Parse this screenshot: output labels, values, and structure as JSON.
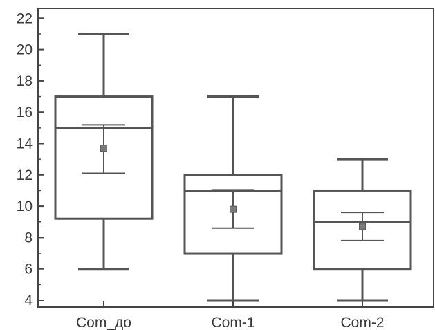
{
  "chart_data": {
    "type": "box",
    "title": "",
    "xlabel": "",
    "ylabel": "",
    "categories": [
      "Сom_до",
      "Сom-1",
      "Сom-2"
    ],
    "ylim": [
      3.2,
      22.8
    ],
    "yticks": [
      4,
      6,
      8,
      10,
      12,
      14,
      16,
      18,
      20,
      22
    ],
    "grid": false,
    "legend": "none",
    "boxes": [
      {
        "category": "Сom_до",
        "min": 6,
        "q1": 9.2,
        "median": 15,
        "q3": 17,
        "max": 21,
        "mean": 13.7,
        "ci_low": 12.1,
        "ci_high": 15.2
      },
      {
        "category": "Сom-1",
        "min": 4,
        "q1": 7,
        "median": 11,
        "q3": 12,
        "max": 17,
        "mean": 9.8,
        "ci_low": 8.6,
        "ci_high": 11.05
      },
      {
        "category": "Сom-2",
        "min": 4,
        "q1": 6,
        "median": 9,
        "q3": 11,
        "max": 13,
        "mean": 8.7,
        "ci_low": 7.8,
        "ci_high": 9.6
      }
    ],
    "colors": {
      "stroke": "#555555",
      "mean_marker": "#7a7a7a",
      "text": "#3a3a3a"
    }
  }
}
